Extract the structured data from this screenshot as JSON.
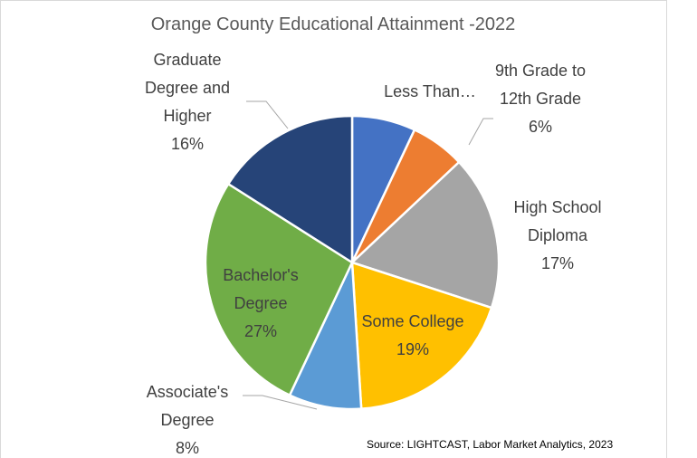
{
  "chart_data": {
    "type": "pie",
    "title": "Orange County Educational Attainment -2022",
    "categories": [
      "Less Than…",
      "9th Grade to 12th Grade",
      "High School Diploma",
      "Some College",
      "Associate's Degree",
      "Bachelor's Degree",
      "Graduate Degree and Higher"
    ],
    "values": [
      7,
      6,
      17,
      19,
      8,
      27,
      16
    ],
    "value_labels": [
      null,
      "6%",
      "17%",
      "19%",
      "8%",
      "27%",
      "16%"
    ],
    "colors": [
      "#4472c4",
      "#ed7d31",
      "#a5a5a5",
      "#ffc000",
      "#5b9bd5",
      "#70ad47",
      "#264478"
    ],
    "source": "Source: LIGHTCAST, Labor Market Analytics, 2023"
  }
}
